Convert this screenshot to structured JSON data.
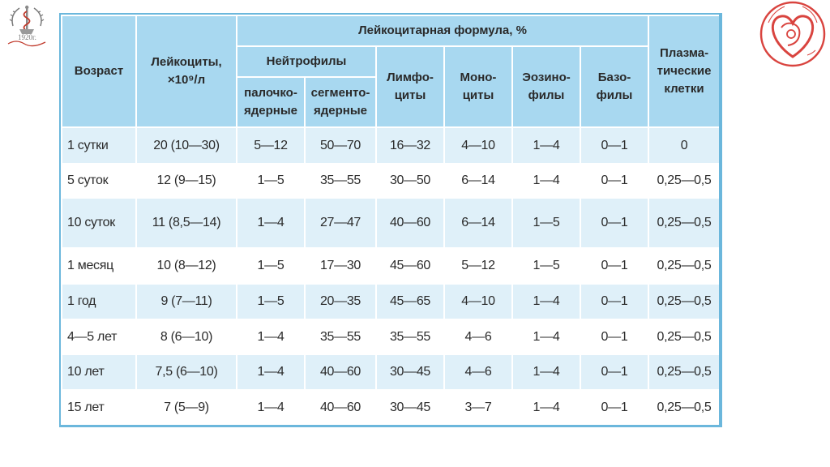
{
  "logo_left": {
    "year_text": "1920г."
  },
  "table": {
    "headers": {
      "age": "Возраст",
      "leukocytes": "Лейкоциты, ×10⁹/л",
      "formula": "Лейкоцитарная формула, %",
      "neutrophils": "Нейтрофилы",
      "band": "палочко-ядерные",
      "segmented": "сегменто-ядерные",
      "lymphocytes": "Лимфо-циты",
      "monocytes": "Моно-циты",
      "eosinophils": "Эозино-филы",
      "basophils": "Базо-филы",
      "plasma": "Плазма-тические клетки"
    },
    "rows": [
      {
        "age": "1 сутки",
        "leuk": "20 (10—30)",
        "band": "5—12",
        "seg": "50—70",
        "lymph": "16—32",
        "mono": "4—10",
        "eos": "1—4",
        "baso": "0—1",
        "plasma": "0"
      },
      {
        "age": "5 суток",
        "leuk": "12 (9—15)",
        "band": "1—5",
        "seg": "35—55",
        "lymph": "30—50",
        "mono": "6—14",
        "eos": "1—4",
        "baso": "0—1",
        "plasma": "0,25—0,5"
      },
      {
        "age": "10 суток",
        "leuk": "11 (8,5—14)",
        "band": "1—4",
        "seg": "27—47",
        "lymph": "40—60",
        "mono": "6—14",
        "eos": "1—5",
        "baso": "0—1",
        "plasma": "0,25—0,5"
      },
      {
        "age": "1 месяц",
        "leuk": "10 (8—12)",
        "band": "1—5",
        "seg": "17—30",
        "lymph": "45—60",
        "mono": "5—12",
        "eos": "1—5",
        "baso": "0—1",
        "plasma": "0,25—0,5"
      },
      {
        "age": "1 год",
        "leuk": "9 (7—11)",
        "band": "1—5",
        "seg": "20—35",
        "lymph": "45—65",
        "mono": "4—10",
        "eos": "1—4",
        "baso": "0—1",
        "plasma": "0,25—0,5"
      },
      {
        "age": "4—5 лет",
        "leuk": "8 (6—10)",
        "band": "1—4",
        "seg": "35—55",
        "lymph": "35—55",
        "mono": "4—6",
        "eos": "1—4",
        "baso": "0—1",
        "plasma": "0,25—0,5"
      },
      {
        "age": "10 лет",
        "leuk": "7,5 (6—10)",
        "band": "1—4",
        "seg": "40—60",
        "lymph": "30—45",
        "mono": "4—6",
        "eos": "1—4",
        "baso": "0—1",
        "plasma": "0,25—0,5"
      },
      {
        "age": "15 лет",
        "leuk": "7 (5—9)",
        "band": "1—4",
        "seg": "40—60",
        "lymph": "30—45",
        "mono": "3—7",
        "eos": "1—4",
        "baso": "0—1",
        "plasma": "0,25—0,5"
      }
    ]
  },
  "colors": {
    "header_bg": "#a8d8f0",
    "row_alt_bg": "#dff0f9",
    "border": "#6bb7dc",
    "logo_red": "#d9443f"
  }
}
